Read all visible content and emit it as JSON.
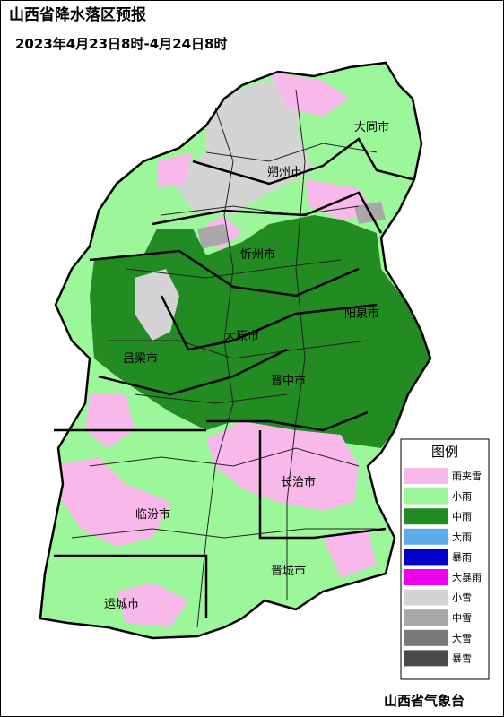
{
  "header": {
    "title": "山西省降水落区预报",
    "subtitle": "2023年4月23日8时-4月24日8时"
  },
  "cities": [
    "大同市",
    "朔州市",
    "忻州市",
    "阳泉市",
    "吕梁市",
    "太原市",
    "晋中市",
    "长治市",
    "临汾市",
    "晋城市",
    "运城市"
  ],
  "legend": {
    "title": "图例",
    "items": [
      {
        "label": "雨夹雪",
        "color": "#f9b8ea"
      },
      {
        "label": "小雨",
        "color": "#9cf79a"
      },
      {
        "label": "中雨",
        "color": "#228b22"
      },
      {
        "label": "大雨",
        "color": "#5eaaea"
      },
      {
        "label": "暴雨",
        "color": "#0000cd"
      },
      {
        "label": "大暴雨",
        "color": "#ee00ee"
      },
      {
        "label": "小雪",
        "color": "#d4d4d4"
      },
      {
        "label": "中雪",
        "color": "#a8a8a8"
      },
      {
        "label": "大雪",
        "color": "#7a7a7a"
      },
      {
        "label": "暴雪",
        "color": "#4a4a4a"
      }
    ]
  },
  "footer": "山西省气象台"
}
